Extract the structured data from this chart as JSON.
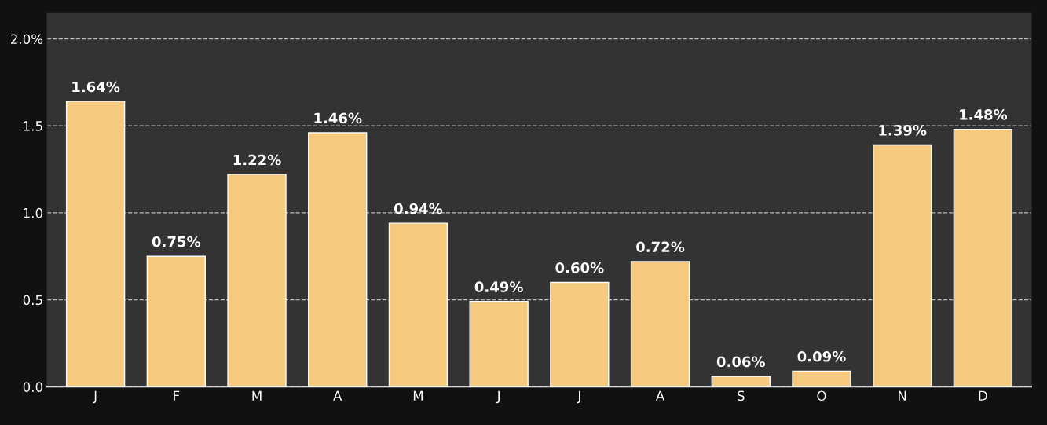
{
  "chart_data": {
    "type": "bar",
    "categories": [
      "J",
      "F",
      "M",
      "A",
      "M",
      "J",
      "J",
      "A",
      "S",
      "O",
      "N",
      "D"
    ],
    "values": [
      1.64,
      0.75,
      1.22,
      1.46,
      0.94,
      0.49,
      0.6,
      0.72,
      0.06,
      0.09,
      1.39,
      1.48
    ],
    "value_labels": [
      "1.64%",
      "0.75%",
      "1.22%",
      "1.46%",
      "0.94%",
      "0.49%",
      "0.60%",
      "0.72%",
      "0.06%",
      "0.09%",
      "1.39%",
      "1.48%"
    ],
    "color": "#f5c97e",
    "ylim": [
      0,
      2.15
    ],
    "yticks": [
      {
        "value": 0,
        "label": "0.0"
      },
      0.5,
      {
        "value": 1,
        "label": "1.0"
      },
      1.5,
      {
        "value": 2,
        "label": "2.0%"
      }
    ],
    "grid": "y",
    "legend": false
  }
}
